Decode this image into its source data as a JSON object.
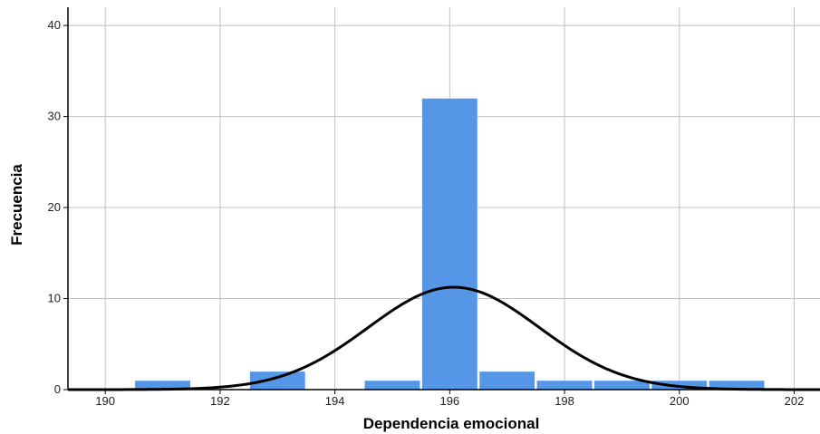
{
  "chart_data": {
    "type": "bar",
    "subtype": "histogram-with-normal-curve",
    "xlabel": "Dependencia emocional",
    "ylabel": "Frecuencia",
    "xlim": [
      189.35,
      202.45
    ],
    "ylim": [
      0,
      42
    ],
    "xticks": [
      190,
      192,
      194,
      196,
      198,
      200,
      202
    ],
    "yticks": [
      0,
      10,
      20,
      30,
      40
    ],
    "grid": true,
    "bin_width": 1,
    "bins": [
      {
        "center": 191,
        "count": 1
      },
      {
        "center": 193,
        "count": 2
      },
      {
        "center": 195,
        "count": 1
      },
      {
        "center": 196,
        "count": 32
      },
      {
        "center": 197,
        "count": 2
      },
      {
        "center": 198,
        "count": 1
      },
      {
        "center": 199,
        "count": 1
      },
      {
        "center": 200,
        "count": 1
      },
      {
        "center": 201,
        "count": 1
      }
    ],
    "normal_curve": {
      "mean": 196.07,
      "std_dev": 1.49,
      "n": 42
    },
    "colors": {
      "bar": "#5596e6",
      "bar_edge": "#ffffff",
      "curve": "#000000",
      "grid": "#c0c0c0",
      "axis": "#000000"
    }
  }
}
